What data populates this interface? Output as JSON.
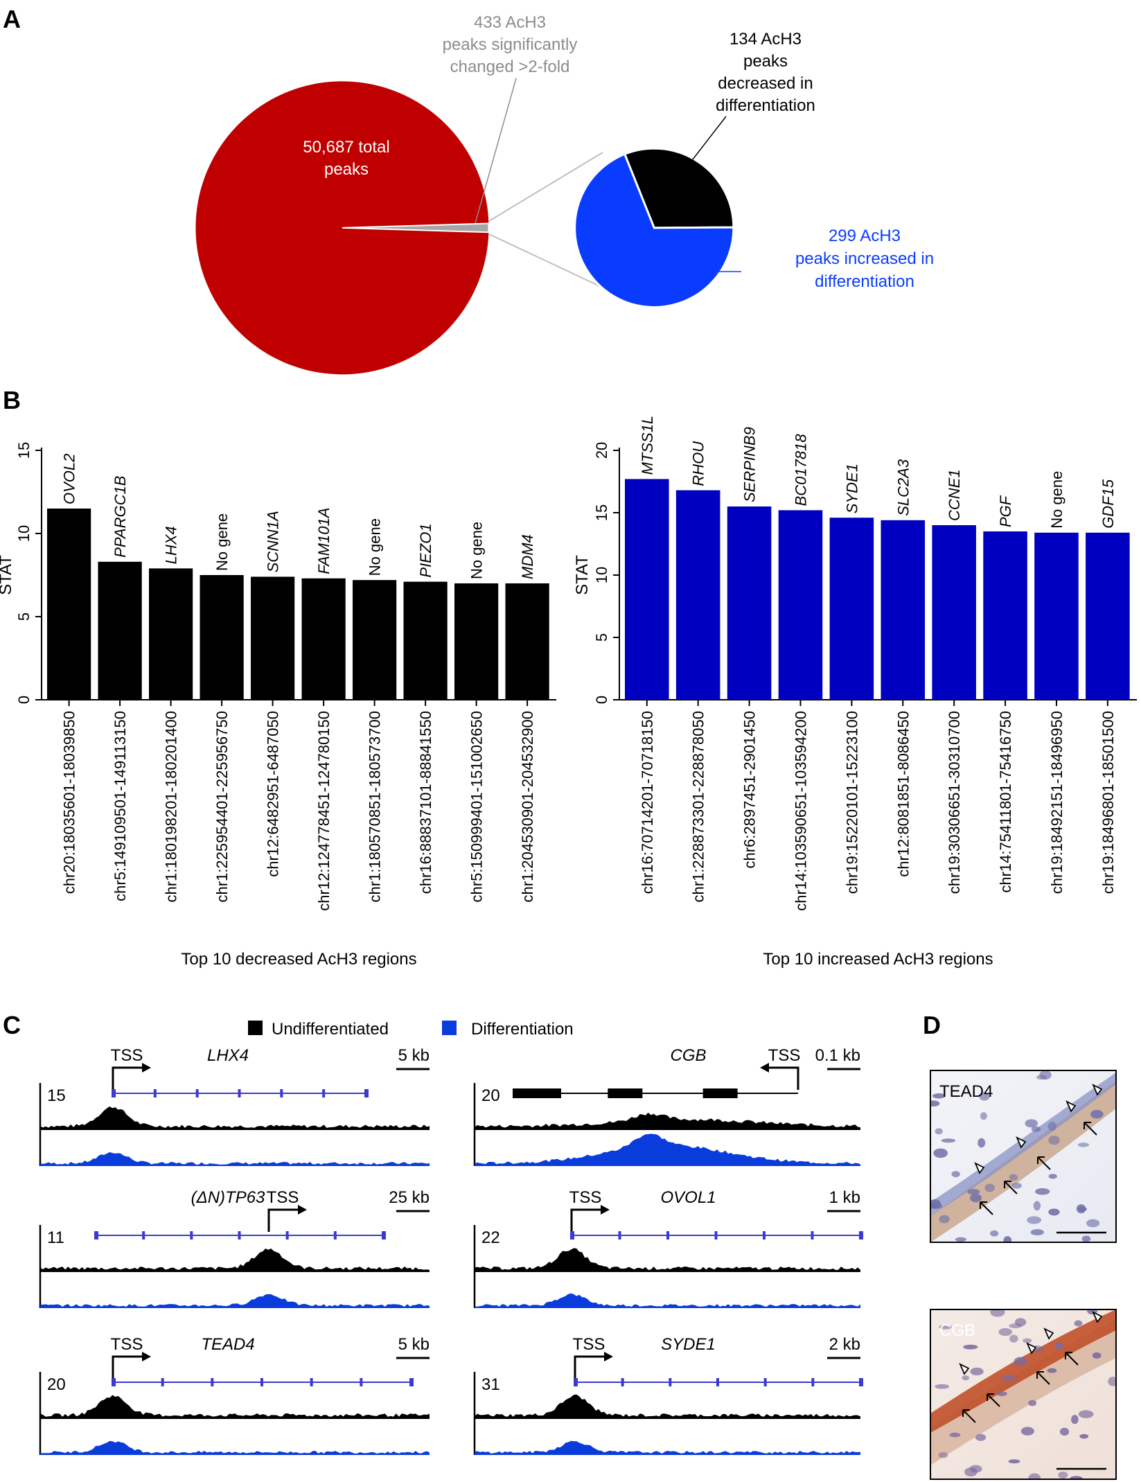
{
  "panels": {
    "a": "A",
    "b": "B",
    "c": "C",
    "d": "D"
  },
  "pie": {
    "total_label": "50,687 total peaks",
    "total_label_lines": [
      "50,687 total",
      "peaks"
    ],
    "changed_label_lines": [
      "433 AcH3",
      "peaks significantly",
      "changed >2-fold"
    ],
    "decreased_label_lines": [
      "134 AcH3",
      "peaks",
      "decreased in",
      "differentiation"
    ],
    "increased_label_lines": [
      "299 AcH3",
      "peaks increased in",
      "differentiation"
    ],
    "total": 50687,
    "changed": 433,
    "decreased": 134,
    "increased": 299,
    "colors": {
      "total": "#c00000",
      "changed": "#a6a6a6",
      "decreased": "#000000",
      "increased": "#0a3cff"
    }
  },
  "chart_data": [
    {
      "type": "bar",
      "title": "Top 10 decreased AcH3 regions",
      "ylabel": "STAT",
      "ylim": [
        0,
        15
      ],
      "yticks": [
        0,
        5,
        10,
        15
      ],
      "color": "#000000",
      "categories": [
        "chr20:18035601-18039850",
        "chr5:149109501-149113150",
        "chr1:180198201-180201400",
        "chr1:225954401-225956750",
        "chr12:6482951-6487050",
        "chr12:124778451-124780150",
        "chr1:180570851-180573700",
        "chr16:88837101-88841550",
        "chr5:150999401-151002650",
        "chr1:204530901-204532900"
      ],
      "genes": [
        "OVOL2",
        "PPARGC1B",
        "LHX4",
        "No gene",
        "SCNN1A",
        "FAM101A",
        "No gene",
        "PIEZO1",
        "No gene",
        "MDM4"
      ],
      "values": [
        11.5,
        8.3,
        7.9,
        7.5,
        7.4,
        7.3,
        7.2,
        7.1,
        7.0,
        7.0
      ]
    },
    {
      "type": "bar",
      "title": "Top 10 increased AcH3 regions",
      "ylabel": "STAT",
      "ylim": [
        0,
        20
      ],
      "yticks": [
        0,
        5,
        10,
        15,
        20
      ],
      "color": "#0000c0",
      "categories": [
        "chr16:70714201-70718150",
        "chr1:228873301-228878050",
        "chr6:2897451-2901450",
        "chr14:103590651-103594200",
        "chr19:15220101-15223100",
        "chr12:8081851-8086450",
        "chr19:30306651-30310700",
        "chr14:75411801-75416750",
        "chr19:18492151-18496950",
        "chr19:18496801-18501500"
      ],
      "genes": [
        "MTSS1L",
        "RHOU",
        "SERPINB9",
        "BC017818",
        "SYDE1",
        "SLC2A3",
        "CCNE1",
        "PGF",
        "No gene",
        "GDF15"
      ],
      "values": [
        17.7,
        16.8,
        15.5,
        15.2,
        14.6,
        14.4,
        14.0,
        13.5,
        13.4,
        13.4
      ]
    }
  ],
  "legend": {
    "undiff_label": "Undifferentiated",
    "diff_label": "Differentiation",
    "undiff_color": "#000000",
    "diff_color": "#0a3cdc"
  },
  "tracks": [
    {
      "gene": "LHX4",
      "scale": "5 kb",
      "ymax": "15",
      "tss": "TSS"
    },
    {
      "gene": "CGB",
      "scale": "0.1 kb",
      "ymax": "20",
      "tss": "TSS"
    },
    {
      "gene": "(ΔN)TP63",
      "scale": "25 kb",
      "ymax": "11",
      "tss": "TSS"
    },
    {
      "gene": "OVOL1",
      "scale": "1 kb",
      "ymax": "22",
      "tss": "TSS"
    },
    {
      "gene": "TEAD4",
      "scale": "5 kb",
      "ymax": "20",
      "tss": "TSS"
    },
    {
      "gene": "SYDE1",
      "scale": "2 kb",
      "ymax": "31",
      "tss": "TSS"
    }
  ],
  "micrographs": {
    "top_label": "TEAD4",
    "bottom_label": "CGB"
  }
}
